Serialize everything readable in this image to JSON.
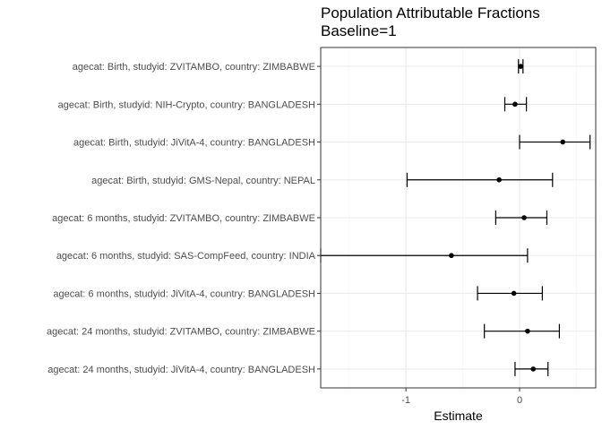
{
  "chart_data": {
    "type": "scatter",
    "orientation": "horizontal-errorbar",
    "title": "Population Attributable Fractions",
    "subtitle": "Baseline=1",
    "xlabel": "Estimate",
    "ylabel": "",
    "xlim": [
      -1.75,
      0.67
    ],
    "xticks": [
      -1,
      0
    ],
    "xtick_labels": [
      "-1",
      "0"
    ],
    "grid": true,
    "theme": "bw",
    "categories": [
      "agecat: Birth, studyid: ZVITAMBO, country: ZIMBABWE",
      "agecat: Birth, studyid: NIH-Crypto, country: BANGLADESH",
      "agecat: Birth, studyid: JiVitA-4, country: BANGLADESH",
      "agecat: Birth, studyid: GMS-Nepal, country: NEPAL",
      "agecat: 6 months, studyid: ZVITAMBO, country: ZIMBABWE",
      "agecat: 6 months, studyid: SAS-CompFeed, country: INDIA",
      "agecat: 6 months, studyid: JiVitA-4, country: BANGLADESH",
      "agecat: 24 months, studyid: ZVITAMBO, country: ZIMBABWE",
      "agecat: 24 months, studyid: JiVitA-4, country: BANGLADESH"
    ],
    "estimate": [
      0.01,
      -0.04,
      0.38,
      -0.18,
      0.04,
      -0.6,
      -0.05,
      0.07,
      0.12
    ],
    "lower": [
      -0.01,
      -0.13,
      0.0,
      -0.99,
      -0.21,
      -1.75,
      -0.37,
      -0.31,
      -0.04
    ],
    "upper": [
      0.03,
      0.06,
      0.62,
      0.29,
      0.24,
      0.07,
      0.2,
      0.35,
      0.25
    ]
  },
  "colors": {
    "point": "#000000",
    "errorbar": "#000000",
    "panel_border": "#333333",
    "grid_major": "#ebebeb",
    "grid_minor": "#f5f5f5",
    "label": "#4d4d4d"
  }
}
